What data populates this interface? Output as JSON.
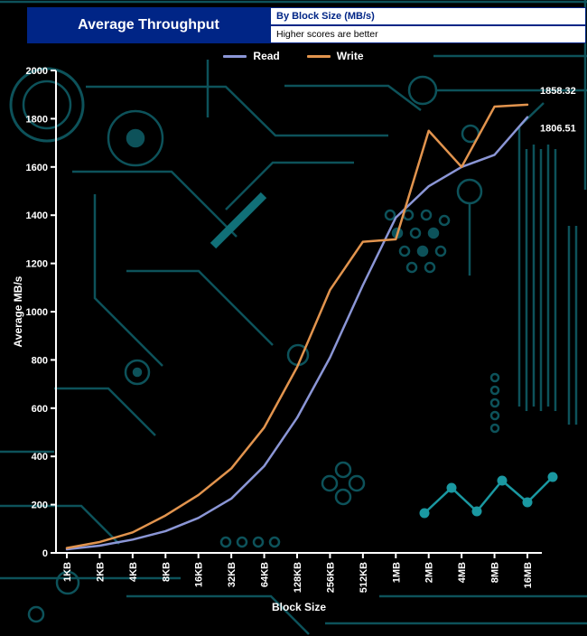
{
  "header": {
    "title": "Average Throughput",
    "info_box_title": "By Block Size (MB/s)",
    "info_box_subtitle": "Higher scores are better"
  },
  "legend": {
    "items": [
      {
        "label": "Read",
        "color": "#8b96d6"
      },
      {
        "label": "Write",
        "color": "#e2944e"
      }
    ]
  },
  "chart_data": {
    "type": "line",
    "title": "Average Throughput",
    "subtitle": "By Block Size (MB/s)",
    "note": "Higher scores are better",
    "xlabel": "Block Size",
    "ylabel": "Average MB/s",
    "ylim": [
      0,
      2000
    ],
    "ytick_interval": 200,
    "grid": false,
    "legend_position": "top",
    "categories": [
      "1KB",
      "2KB",
      "4KB",
      "8KB",
      "16KB",
      "32KB",
      "64KB",
      "128KB",
      "256KB",
      "512KB",
      "1MB",
      "2MB",
      "4MB",
      "8MB",
      "16MB"
    ],
    "series": [
      {
        "name": "Read",
        "color": "#8b96d6",
        "end_label": "1806.51",
        "values": [
          15,
          30,
          55,
          90,
          145,
          225,
          360,
          560,
          810,
          1110,
          1390,
          1520,
          1600,
          1650,
          1806.51
        ]
      },
      {
        "name": "Write",
        "color": "#e2944e",
        "end_label": "1858.32",
        "values": [
          20,
          45,
          85,
          155,
          240,
          350,
          520,
          770,
          1090,
          1290,
          1300,
          1750,
          1600,
          1850,
          1858.32
        ]
      }
    ]
  },
  "colors": {
    "background": "#000000",
    "header_bar": "#002586",
    "axis": "#ffffff",
    "text": "#ffffff",
    "circuit_dim": "#0d525a",
    "circuit_bright": "#1a98a1"
  }
}
